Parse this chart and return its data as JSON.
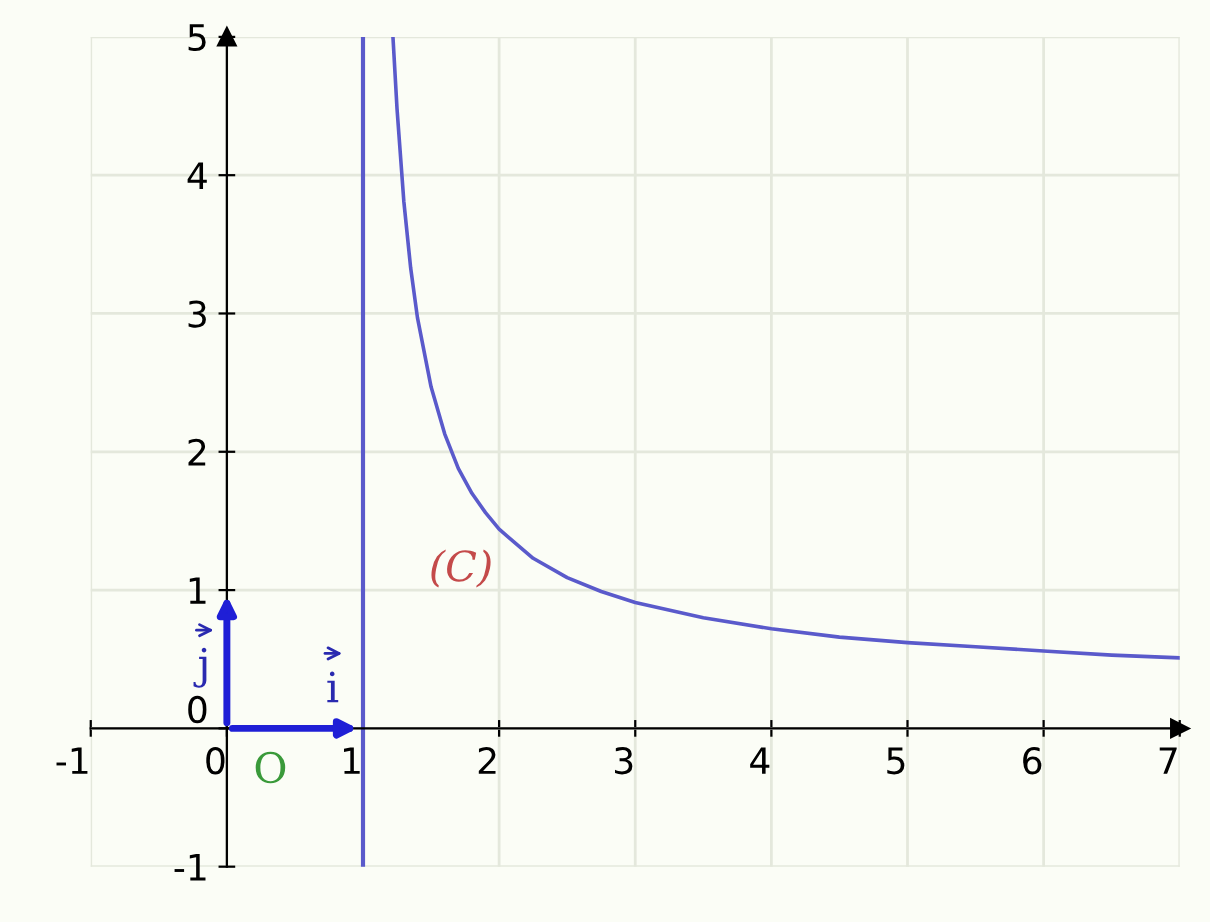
{
  "chart_data": {
    "type": "line",
    "x": [
      1.22,
      1.25,
      1.3,
      1.35,
      1.4,
      1.5,
      1.6,
      1.7,
      1.8,
      1.9,
      2.0,
      2.25,
      2.5,
      2.75,
      3,
      3.5,
      4,
      4.5,
      5,
      5.5,
      6,
      6.5,
      7
    ],
    "series": [
      {
        "color": "#5a5acb",
        "values": [
          5,
          4.48,
          3.81,
          3.33,
          2.97,
          2.47,
          2.13,
          1.88,
          1.7,
          1.56,
          1.44,
          1.23,
          1.09,
          0.99,
          0.91,
          0.8,
          0.72,
          0.66,
          0.62,
          0.59,
          0.56,
          0.53,
          0.51
        ]
      }
    ],
    "xlim": [
      -1,
      7
    ],
    "ylim": [
      -1,
      5
    ],
    "xticks": [
      -1,
      0,
      1,
      2,
      3,
      4,
      5,
      6,
      7
    ],
    "yticks": [
      -1,
      0,
      1,
      2,
      3,
      4,
      5
    ],
    "grid": true,
    "marker": "none",
    "line_style": "solid",
    "ref_lines": [
      {
        "axis": "x",
        "value": 1,
        "color": "#5a5acb"
      }
    ],
    "annotations": [
      "(C)",
      "O",
      "j",
      "i"
    ]
  }
}
